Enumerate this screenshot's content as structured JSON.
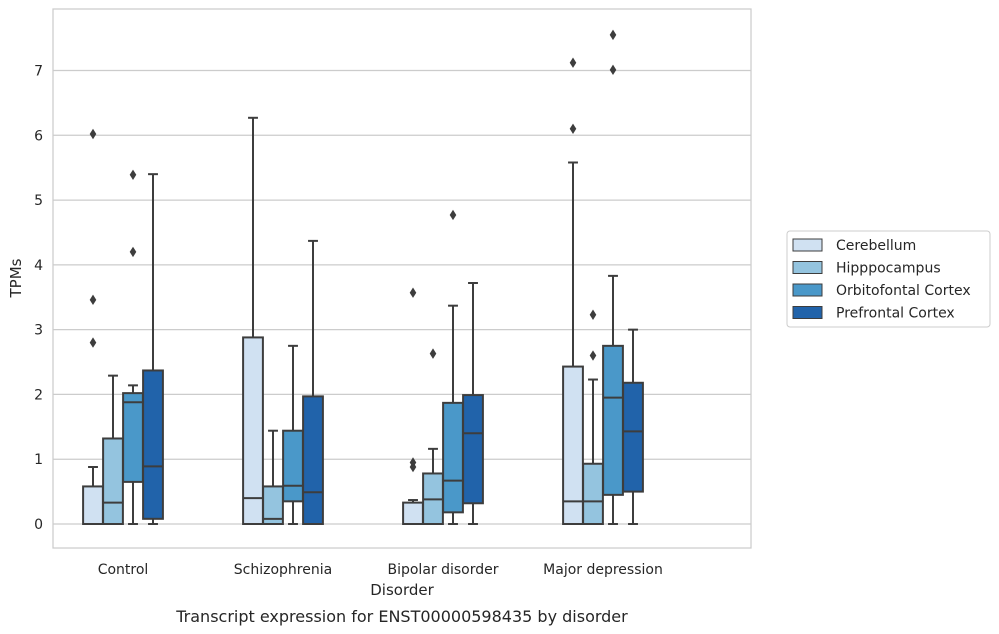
{
  "chart_data": {
    "type": "box",
    "title": "",
    "caption": "Transcript expression for ENST00000598435 by disorder",
    "xlabel": "Disorder",
    "ylabel": "TPMs",
    "ylim": [
      -0.37,
      7.9
    ],
    "yticks": [
      0,
      1,
      2,
      3,
      4,
      5,
      6,
      7
    ],
    "grid": "horizontal",
    "legend_position": "right",
    "categories": [
      "Control",
      "Schizophrenia",
      "Bipolar disorder",
      "Major depression"
    ],
    "series": [
      {
        "name": "Cerebellum",
        "color": "#d0e1f2",
        "boxes": [
          {
            "whisker_low": 0,
            "q1": 0,
            "median": 0,
            "q3": 0.58,
            "whisker_high": 0.88,
            "outliers": [
              2.8,
              3.46,
              6.02
            ]
          },
          {
            "whisker_low": 0,
            "q1": 0,
            "median": 0.4,
            "q3": 2.88,
            "whisker_high": 6.27,
            "outliers": []
          },
          {
            "whisker_low": 0,
            "q1": 0,
            "median": 0,
            "q3": 0.33,
            "whisker_high": 0.37,
            "outliers": [
              0.88,
              0.95,
              3.57
            ]
          },
          {
            "whisker_low": 0,
            "q1": 0,
            "median": 0.35,
            "q3": 2.43,
            "whisker_high": 5.58,
            "outliers": [
              6.1,
              7.12
            ]
          }
        ]
      },
      {
        "name": "Hipppocampus",
        "color": "#94c4df",
        "boxes": [
          {
            "whisker_low": 0,
            "q1": 0,
            "median": 0.33,
            "q3": 1.32,
            "whisker_high": 2.29,
            "outliers": []
          },
          {
            "whisker_low": 0,
            "q1": 0,
            "median": 0.08,
            "q3": 0.58,
            "whisker_high": 1.44,
            "outliers": []
          },
          {
            "whisker_low": 0,
            "q1": 0,
            "median": 0.38,
            "q3": 0.78,
            "whisker_high": 1.16,
            "outliers": [
              2.63
            ]
          },
          {
            "whisker_low": 0,
            "q1": 0,
            "median": 0.35,
            "q3": 0.93,
            "whisker_high": 2.23,
            "outliers": [
              2.6,
              3.23
            ]
          }
        ]
      },
      {
        "name": "Orbitofontal Cortex",
        "color": "#4a98c9",
        "boxes": [
          {
            "whisker_low": 0,
            "q1": 0.65,
            "median": 1.88,
            "q3": 2.02,
            "whisker_high": 2.14,
            "outliers": [
              4.2,
              5.39
            ]
          },
          {
            "whisker_low": 0,
            "q1": 0.35,
            "median": 0.59,
            "q3": 1.44,
            "whisker_high": 2.75,
            "outliers": []
          },
          {
            "whisker_low": 0,
            "q1": 0.18,
            "median": 0.67,
            "q3": 1.87,
            "whisker_high": 3.37,
            "outliers": [
              4.77
            ]
          },
          {
            "whisker_low": 0,
            "q1": 0.45,
            "median": 1.95,
            "q3": 2.75,
            "whisker_high": 3.83,
            "outliers": [
              7.01,
              7.55
            ]
          }
        ]
      },
      {
        "name": "Prefrontal Cortex",
        "color": "#2163aa",
        "boxes": [
          {
            "whisker_low": 0,
            "q1": 0.08,
            "median": 0.89,
            "q3": 2.37,
            "whisker_high": 5.4,
            "outliers": []
          },
          {
            "whisker_low": 0,
            "q1": 0,
            "median": 0.49,
            "q3": 1.97,
            "whisker_high": 4.37,
            "outliers": []
          },
          {
            "whisker_low": 0,
            "q1": 0.32,
            "median": 1.4,
            "q3": 1.99,
            "whisker_high": 3.72,
            "outliers": []
          },
          {
            "whisker_low": 0,
            "q1": 0.5,
            "median": 1.43,
            "q3": 2.18,
            "whisker_high": 3.0,
            "outliers": []
          }
        ]
      }
    ]
  }
}
